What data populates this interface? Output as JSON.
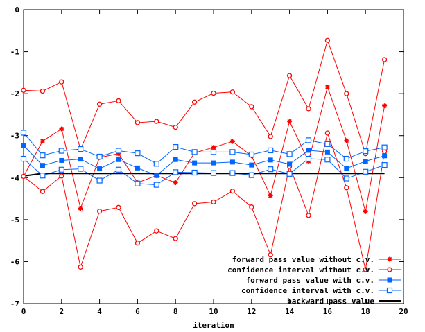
{
  "chart_data": {
    "type": "line",
    "title": "",
    "xlabel": "iteration",
    "ylabel": "",
    "xlim": [
      0,
      20
    ],
    "ylim": [
      -7,
      0
    ],
    "xticks": [
      0,
      2,
      4,
      6,
      8,
      10,
      12,
      14,
      16,
      18,
      20
    ],
    "yticks": [
      0,
      -1,
      -2,
      -3,
      -4,
      -5,
      -6,
      -7
    ],
    "xtick_labels": [
      "0",
      "2",
      "4",
      "6",
      "8",
      "10",
      "12",
      "14",
      "16",
      "18",
      "20"
    ],
    "ytick_labels": [
      "0",
      "-1",
      "-2",
      "-3",
      "-4",
      "-5",
      "-6",
      "-7"
    ],
    "grid": false,
    "legend_position": "bottom-right",
    "x": [
      0,
      1,
      2,
      3,
      4,
      5,
      6,
      7,
      8,
      9,
      10,
      11,
      12,
      13,
      14,
      15,
      16,
      17,
      18,
      19
    ],
    "series": [
      {
        "name": "forward pass value without c.v.",
        "color": "#ff0000",
        "marker": "filled-star",
        "values": [
          -3.97,
          -3.13,
          -2.84,
          -4.73,
          -3.52,
          -3.43,
          -4.12,
          -3.95,
          -4.12,
          -3.41,
          -3.28,
          -3.14,
          -3.48,
          -4.43,
          -2.66,
          -3.61,
          -1.84,
          -3.12,
          -4.81,
          -2.29
        ]
      },
      {
        "name": "confidence interval without c.v.",
        "color": "#ff0000",
        "marker": "open-circle",
        "values": [
          -1.92,
          -1.94,
          -1.72,
          -3.33,
          -2.25,
          -2.17,
          -2.69,
          -2.66,
          -2.8,
          -2.2,
          -1.99,
          -1.96,
          -2.31,
          -3.02,
          -1.57,
          -2.36,
          -0.73,
          -2.0,
          -3.43,
          -1.19
        ]
      },
      {
        "name": "confidence interval without c.v.",
        "color": "#ff0000",
        "marker": "open-circle",
        "values": [
          -3.97,
          -4.33,
          -3.96,
          -6.13,
          -4.8,
          -4.71,
          -5.56,
          -5.27,
          -5.45,
          -4.62,
          -4.58,
          -4.32,
          -4.7,
          -5.84,
          -3.73,
          -4.9,
          -2.94,
          -4.24,
          -6.19,
          -3.38
        ]
      },
      {
        "name": "forward pass value with c.v.",
        "color": "#0066ff",
        "marker": "filled-square",
        "values": [
          -3.23,
          -3.71,
          -3.59,
          -3.56,
          -3.79,
          -3.57,
          -3.77,
          -3.95,
          -3.57,
          -3.65,
          -3.65,
          -3.63,
          -3.7,
          -3.58,
          -3.68,
          -3.35,
          -3.39,
          -3.78,
          -3.61,
          -3.48
        ]
      },
      {
        "name": "confidence interval with c.v.",
        "color": "#0066ff",
        "marker": "open-square",
        "values": [
          -2.93,
          -3.47,
          -3.36,
          -3.32,
          -3.5,
          -3.36,
          -3.42,
          -3.67,
          -3.27,
          -3.39,
          -3.39,
          -3.39,
          -3.45,
          -3.35,
          -3.44,
          -3.11,
          -3.2,
          -3.55,
          -3.37,
          -3.28
        ]
      },
      {
        "name": "confidence interval with c.v.",
        "color": "#0066ff",
        "marker": "open-square",
        "values": [
          -3.55,
          -3.95,
          -3.81,
          -3.79,
          -4.07,
          -3.81,
          -4.14,
          -4.17,
          -3.87,
          -3.88,
          -3.89,
          -3.89,
          -3.94,
          -3.8,
          -3.91,
          -3.55,
          -3.57,
          -4.02,
          -3.86,
          -3.7
        ]
      },
      {
        "name": "backward pass value",
        "color": "#000000",
        "marker": "none",
        "values": [
          -3.96,
          -3.9,
          -3.9,
          -3.9,
          -3.9,
          -3.9,
          -3.9,
          -3.9,
          -3.9,
          -3.9,
          -3.9,
          -3.9,
          -3.9,
          -3.9,
          -3.9,
          -3.9,
          -3.9,
          -3.9,
          -3.9,
          -3.9
        ]
      }
    ],
    "legend": [
      {
        "label": "forward pass value without c.v.",
        "series_index": 0
      },
      {
        "label": "confidence interval without c.v.",
        "series_index": 1
      },
      {
        "label": "forward pass value with c.v.",
        "series_index": 3
      },
      {
        "label": "confidence interval with c.v.",
        "series_index": 4
      },
      {
        "label": "backward pass value",
        "series_index": 6
      }
    ]
  }
}
